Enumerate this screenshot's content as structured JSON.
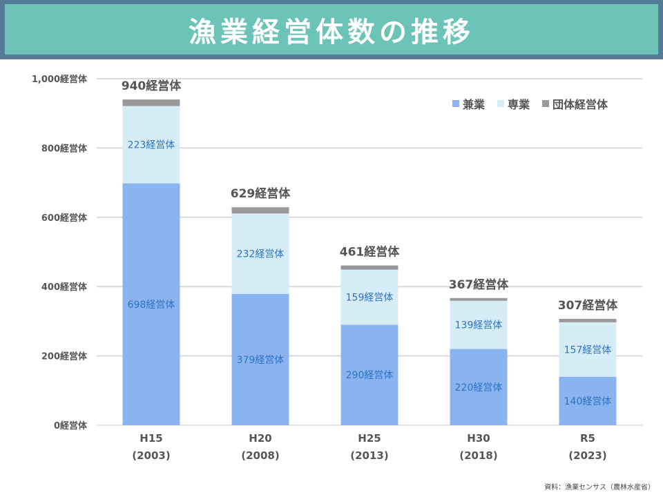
{
  "title": "漁業経営体数の推移",
  "source": "資料：漁業センサス（農林水産省）",
  "chart_data": {
    "type": "bar",
    "stacked": true,
    "categories": [
      "H15\n(2003)",
      "H20\n(2008)",
      "H25\n(2013)",
      "H30\n(2018)",
      "R5\n(2023)"
    ],
    "series": [
      {
        "name": "兼業",
        "color": "#8ab4f0",
        "values": [
          698,
          379,
          290,
          220,
          140
        ],
        "labels": [
          "698経営体",
          "379経営体",
          "290経営体",
          "220経営体",
          "140経営体"
        ]
      },
      {
        "name": "専業",
        "color": "#d6ecf7",
        "values": [
          223,
          232,
          159,
          139,
          157
        ],
        "labels": [
          "223経営体",
          "232経営体",
          "159経営体",
          "139経営体",
          "157経営体"
        ]
      },
      {
        "name": "団体経営体",
        "color": "#999999",
        "values": [
          19,
          18,
          12,
          8,
          10
        ]
      }
    ],
    "totals": [
      "940経営体",
      "629経営体",
      "461経営体",
      "367経営体",
      "307経営体"
    ],
    "yticks": [
      "0経営体",
      "200経営体",
      "400経営体",
      "600経営体",
      "800経営体",
      "1,000経営体"
    ],
    "ylim": [
      0,
      1000
    ],
    "grid": true,
    "legend": "top-right",
    "label_color": "#2b72c4"
  }
}
